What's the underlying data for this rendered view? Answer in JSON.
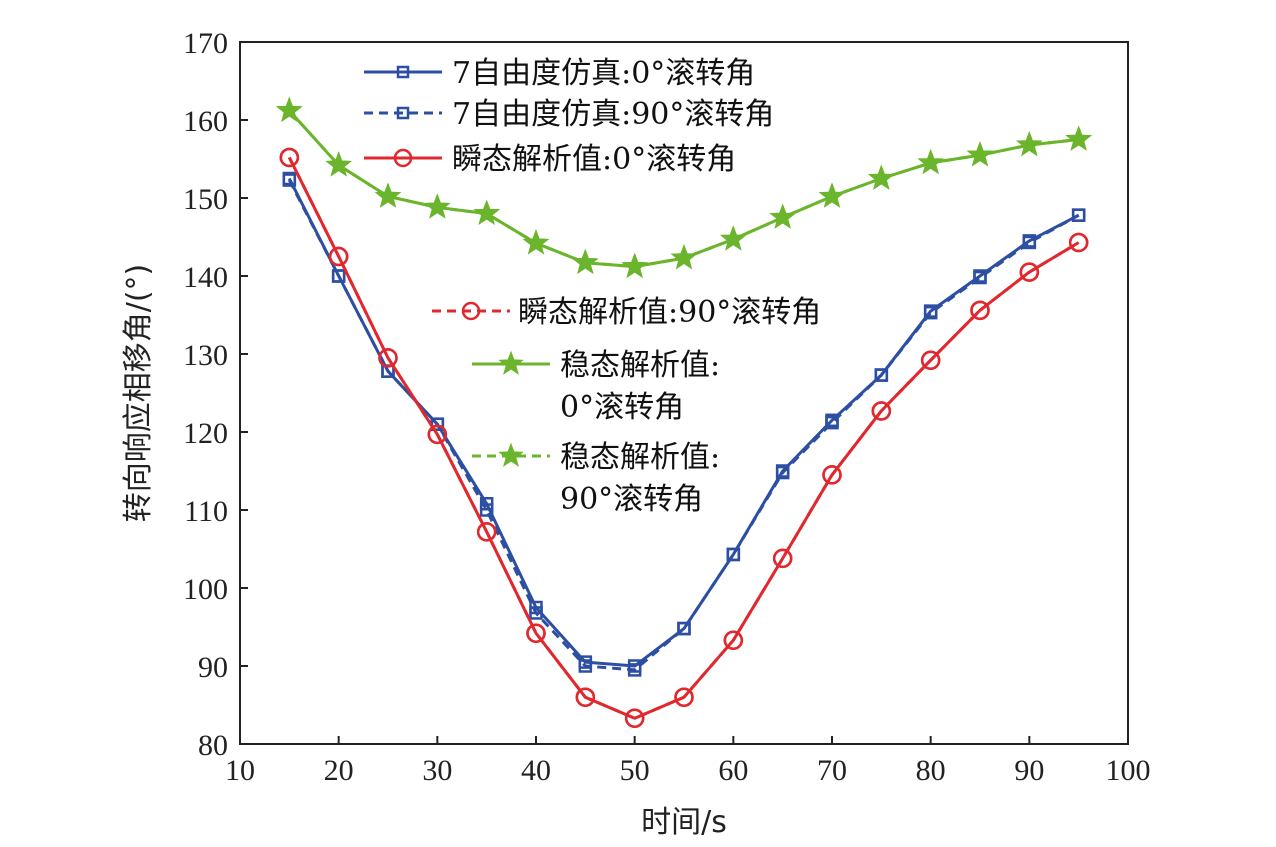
{
  "chart_data": {
    "type": "line",
    "xlabel": "时间/s",
    "ylabel": "转向响应相移角/(°)",
    "xlim": [
      10,
      100
    ],
    "ylim": [
      80,
      170
    ],
    "xticks": [
      10,
      20,
      30,
      40,
      50,
      60,
      70,
      80,
      90,
      100
    ],
    "yticks": [
      80,
      90,
      100,
      110,
      120,
      130,
      140,
      150,
      160,
      170
    ],
    "grid": false,
    "x": [
      15,
      20,
      25,
      30,
      35,
      40,
      45,
      50,
      55,
      60,
      65,
      70,
      75,
      80,
      85,
      90,
      95
    ],
    "series": [
      {
        "name": "7自由度仿真:0°滚转角",
        "color": "#2c4fa3",
        "line_style": "solid",
        "marker": "square",
        "values": [
          152.5,
          140.0,
          127.8,
          121.0,
          110.8,
          97.5,
          90.5,
          90.0,
          94.8,
          104.3,
          115.0,
          121.5,
          127.3,
          135.5,
          140.0,
          144.5,
          147.8
        ]
      },
      {
        "name": "7自由度仿真:90°滚转角",
        "color": "#2c4fa3",
        "line_style": "dashed",
        "marker": "square",
        "values": [
          152.3,
          140.0,
          127.8,
          121.0,
          110.0,
          96.8,
          90.0,
          89.5,
          94.8,
          104.3,
          114.8,
          121.2,
          127.3,
          135.3,
          139.8,
          144.3,
          147.8
        ]
      },
      {
        "name": "瞬态解析值:0°滚转角",
        "color": "#e0282e",
        "line_style": "solid",
        "marker": "circle",
        "values": [
          155.2,
          142.5,
          129.5,
          119.7,
          107.2,
          94.2,
          86.0,
          83.3,
          86.0,
          93.3,
          103.8,
          114.5,
          122.7,
          129.2,
          135.6,
          140.5,
          144.3
        ]
      },
      {
        "name": "瞬态解析值:90°滚转角",
        "color": "#e0282e",
        "line_style": "dashed",
        "marker": "circle",
        "values": [
          155.2,
          142.5,
          129.5,
          119.7,
          107.2,
          94.2,
          86.0,
          83.3,
          86.0,
          93.3,
          103.8,
          114.5,
          122.7,
          129.2,
          135.6,
          140.5,
          144.3
        ]
      },
      {
        "name": "稳态解析值:\n0°滚转角",
        "color": "#6bb52c",
        "line_style": "solid",
        "marker": "star",
        "values": [
          161.2,
          154.2,
          150.2,
          148.8,
          148.0,
          144.2,
          141.7,
          141.2,
          142.3,
          144.7,
          147.5,
          150.2,
          152.5,
          154.5,
          155.5,
          156.8,
          157.5
        ]
      },
      {
        "name": "稳态解析值:\n90°滚转角",
        "color": "#6bb52c",
        "line_style": "dashed",
        "marker": "star",
        "values": [
          161.2,
          154.2,
          150.2,
          148.8,
          148.0,
          144.2,
          141.7,
          141.2,
          142.3,
          144.7,
          147.5,
          150.2,
          152.5,
          154.5,
          155.5,
          156.8,
          157.5
        ]
      }
    ]
  }
}
